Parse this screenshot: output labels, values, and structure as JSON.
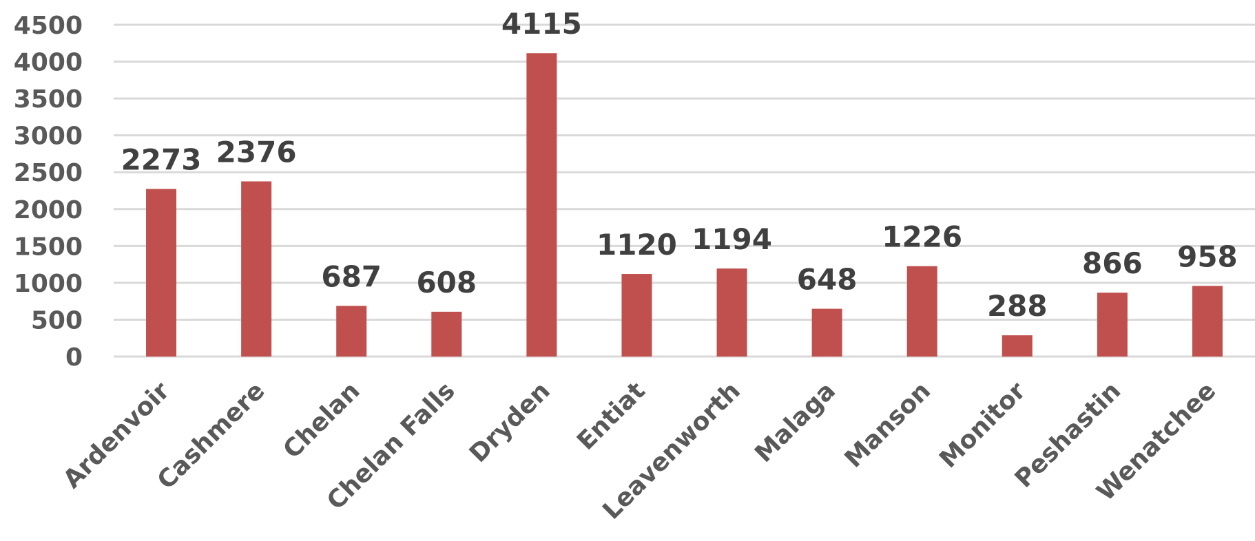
{
  "chart_data": {
    "type": "bar",
    "categories": [
      "Ardenvoir",
      "Cashmere",
      "Chelan",
      "Chelan Falls",
      "Dryden",
      "Entiat",
      "Leavenworth",
      "Malaga",
      "Manson",
      "Monitor",
      "Peshastin",
      "Wenatchee"
    ],
    "values": [
      2273,
      2376,
      687,
      608,
      4115,
      1120,
      1194,
      648,
      1226,
      288,
      866,
      958
    ],
    "y_ticks": [
      0,
      500,
      1000,
      1500,
      2000,
      2500,
      3000,
      3500,
      4000,
      4500
    ],
    "ylim": [
      0,
      4500
    ],
    "grid": true,
    "legend": "none",
    "data_labels": true,
    "bar_color": "#c0504d",
    "gridline_color": "#d9d9d9",
    "label_color": "#404040",
    "axis_text_color": "#595959"
  }
}
